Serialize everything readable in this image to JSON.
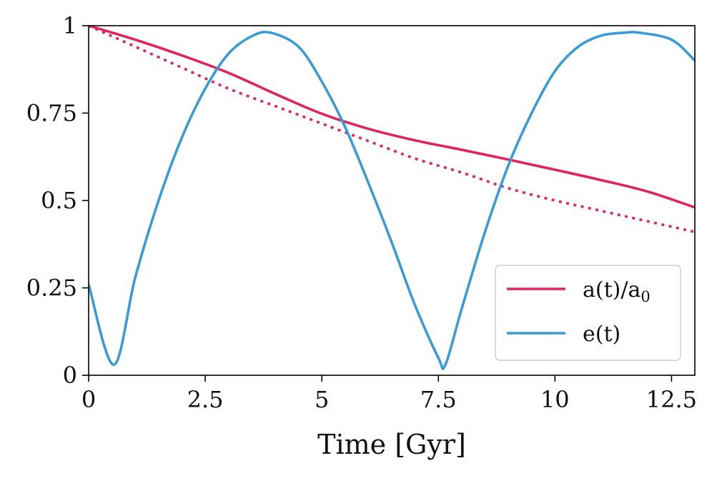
{
  "chart_data": {
    "type": "line",
    "title": "",
    "xlabel": "Time [Gyr]",
    "ylabel": "",
    "xlim": [
      0,
      13
    ],
    "ylim": [
      0,
      1
    ],
    "grid": false,
    "legend_position": "bottom-right",
    "xticks": [
      {
        "value": 0,
        "label": "0"
      },
      {
        "value": 2.5,
        "label": "2.5"
      },
      {
        "value": 5,
        "label": "5"
      },
      {
        "value": 7.5,
        "label": "7.5"
      },
      {
        "value": 10,
        "label": "10"
      },
      {
        "value": 12.5,
        "label": "12.5"
      }
    ],
    "yticks": [
      {
        "value": 0,
        "label": "0"
      },
      {
        "value": 0.25,
        "label": "0.25"
      },
      {
        "value": 0.5,
        "label": "0.5"
      },
      {
        "value": 0.75,
        "label": "0.75"
      },
      {
        "value": 1,
        "label": "1"
      }
    ],
    "series": [
      {
        "name": "a(t)/a0",
        "legend_label_main": "a(t)/a",
        "legend_label_sub": "0",
        "color": "#e0245e",
        "style": "solid",
        "in_legend": true,
        "x": [
          0,
          1,
          2,
          3,
          4,
          5,
          6,
          7,
          8,
          9,
          10,
          11,
          12,
          13
        ],
        "y": [
          1.0,
          0.96,
          0.915,
          0.865,
          0.805,
          0.748,
          0.705,
          0.672,
          0.645,
          0.617,
          0.588,
          0.558,
          0.525,
          0.48
        ]
      },
      {
        "name": "a(t)/a0 (dotted)",
        "color": "#e0245e",
        "style": "dotted",
        "in_legend": false,
        "x": [
          0,
          1,
          2,
          3,
          4,
          5,
          6,
          7,
          8,
          9,
          10,
          11,
          12,
          13
        ],
        "y": [
          1.0,
          0.94,
          0.88,
          0.82,
          0.77,
          0.72,
          0.67,
          0.62,
          0.58,
          0.535,
          0.5,
          0.47,
          0.44,
          0.41
        ]
      },
      {
        "name": "e(t)",
        "legend_label_main": "e(t)",
        "legend_label_sub": "",
        "color": "#3a9bd5",
        "style": "solid",
        "in_legend": true,
        "x": [
          0,
          0.54,
          1,
          1.5,
          2,
          2.5,
          3,
          3.5,
          3.9,
          4.5,
          5,
          5.5,
          6,
          6.5,
          7,
          7.5,
          7.65,
          8,
          8.5,
          9,
          9.5,
          10,
          10.5,
          11,
          11.5,
          11.8,
          12.5,
          13
        ],
        "y": [
          0.26,
          0.03,
          0.28,
          0.5,
          0.68,
          0.82,
          0.92,
          0.97,
          0.98,
          0.94,
          0.84,
          0.71,
          0.55,
          0.38,
          0.2,
          0.05,
          0.03,
          0.19,
          0.41,
          0.6,
          0.75,
          0.87,
          0.94,
          0.972,
          0.98,
          0.98,
          0.96,
          0.9
        ]
      }
    ]
  }
}
